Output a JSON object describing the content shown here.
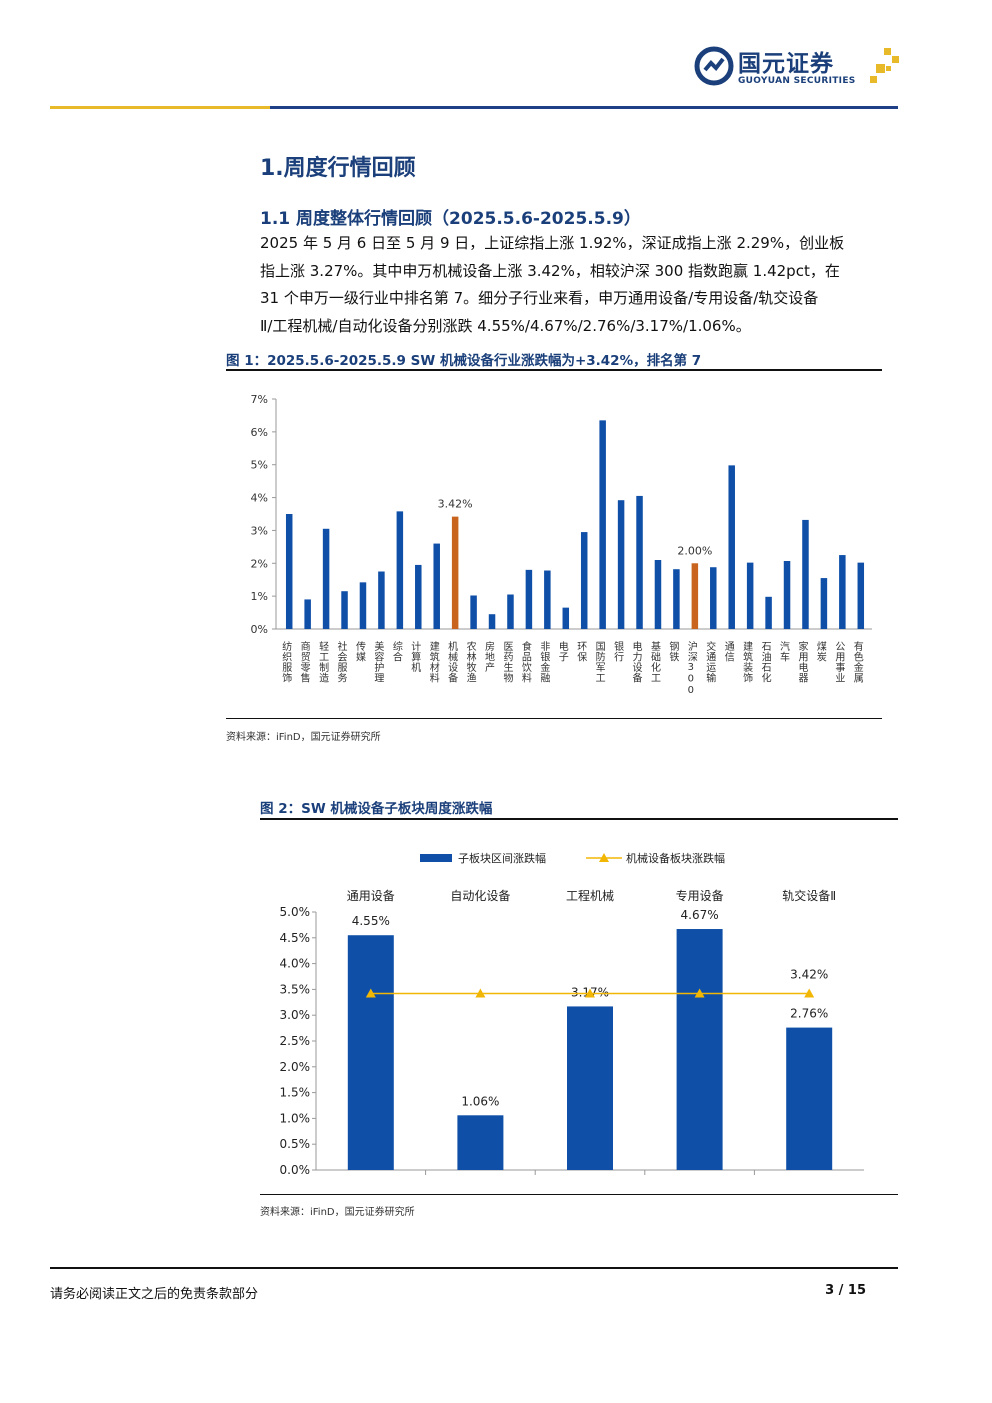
{
  "header": {
    "logo_cn": "国元证券",
    "logo_en": "GUOYUAN SECURITIES"
  },
  "section_title": "1.周度行情回顾",
  "subsection_title": "1.1 周度整体行情回顾（2025.5.6-2025.5.9）",
  "paragraph_lines": [
    "2025 年 5 月 6 日至 5 月 9 日，上证综指上涨 1.92%，深证成指上涨 2.29%，创业板",
    "指上涨 3.27%。其中申万机械设备上涨 3.42%，相较沪深 300 指数跑赢 1.42pct，在",
    "31 个申万一级行业中排名第 7。细分子行业来看，申万通用设备/专用设备/轨交设备",
    "Ⅱ/工程机械/自动化设备分别涨跌 4.55%/4.67%/2.76%/3.17%/1.06%。"
  ],
  "figure1": {
    "title": "图 1：2025.5.6-2025.5.9 SW 机械设备行业涨跌幅为+3.42%，排名第 7",
    "source": "资料来源：iFinD，国元证券研究所"
  },
  "figure2": {
    "title": "图 2：SW 机械设备子板块周度涨跌幅",
    "source": "资料来源：iFinD，国元证券研究所"
  },
  "chart_data": [
    {
      "type": "bar",
      "categories": [
        "纺织服饰",
        "商贸零售",
        "轻工制造",
        "社会服务",
        "传媒",
        "美容护理",
        "综合",
        "计算机",
        "建筑材料",
        "机械设备",
        "农林牧渔",
        "房地产",
        "医药生物",
        "食品饮料",
        "非银金融",
        "电子",
        "环保",
        "国防军工",
        "银行",
        "电力设备",
        "基础化工",
        "钢铁",
        "沪深300",
        "交通运输",
        "通信",
        "建筑装饰",
        "石油石化",
        "汽车",
        "家用电器",
        "煤炭",
        "公用事业",
        "有色金属"
      ],
      "values": [
        3.5,
        0.9,
        3.05,
        1.15,
        1.42,
        1.75,
        3.58,
        1.95,
        2.6,
        3.42,
        1.02,
        0.45,
        1.05,
        1.8,
        1.78,
        0.65,
        2.95,
        6.35,
        3.92,
        4.05,
        2.1,
        1.82,
        2.0,
        1.88,
        4.98,
        2.02,
        0.98,
        2.07,
        3.32,
        1.55,
        2.25,
        2.02
      ],
      "highlight": [
        9,
        22
      ],
      "data_labels": {
        "9": "3.42%",
        "22": "2.00%"
      },
      "yticks": [
        "0%",
        "1%",
        "2%",
        "3%",
        "4%",
        "5%",
        "6%",
        "7%"
      ],
      "ylim": [
        0,
        7
      ],
      "colors": {
        "bar": "#0f4fa8",
        "highlight": "#c8641d"
      },
      "grid": false
    },
    {
      "type": "bar+line",
      "categories": [
        "通用设备",
        "自动化设备",
        "工程机械",
        "专用设备",
        "轨交设备Ⅱ"
      ],
      "series": [
        {
          "name": "子板块区间涨跌幅",
          "type": "bar",
          "values": [
            4.55,
            1.06,
            3.17,
            4.67,
            2.76
          ],
          "labels": [
            "4.55%",
            "1.06%",
            "3.17%",
            "4.67%",
            "2.76%"
          ],
          "color": "#0f4fa8"
        },
        {
          "name": "机械设备板块涨跌幅",
          "type": "line",
          "values": [
            3.42,
            3.42,
            3.42,
            3.42,
            3.42
          ],
          "labels": [
            "",
            "",
            "",
            "",
            "3.42%"
          ],
          "color": "#f2b705"
        }
      ],
      "yticks": [
        "0.0%",
        "0.5%",
        "1.0%",
        "1.5%",
        "2.0%",
        "2.5%",
        "3.0%",
        "3.5%",
        "4.0%",
        "4.5%",
        "5.0%"
      ],
      "ylim": [
        0,
        5
      ],
      "legend": "top",
      "grid": false
    }
  ],
  "footer": {
    "disclaimer": "请务必阅读正文之后的免责条款部分",
    "page": "3 / 15"
  }
}
